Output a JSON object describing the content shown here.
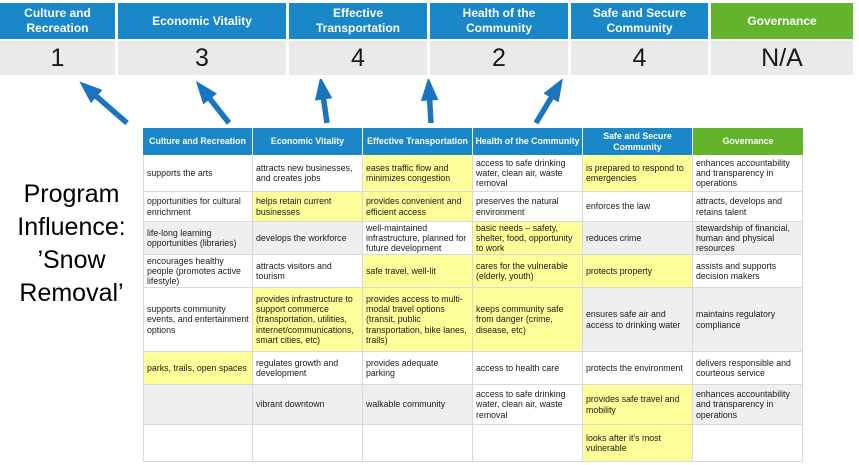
{
  "title": {
    "full": "Program Influence: ’Snow Removal’",
    "lines": [
      "Program",
      "Influence:",
      "’Snow",
      "Removal’"
    ]
  },
  "colors": {
    "blue": "#1987C8",
    "green": "#64B32D",
    "arrow": "#1B74BE",
    "highlight": "#FDFD99",
    "band": "#EFEFEF",
    "score_bg": "#EAEAEA"
  },
  "banner": {
    "columns": [
      {
        "label": "Culture and Recreation",
        "score": "1",
        "color": "#1987C8"
      },
      {
        "label": "Economic Vitality",
        "score": "3",
        "color": "#1987C8"
      },
      {
        "label": "Effective Transportation",
        "score": "4",
        "color": "#1987C8"
      },
      {
        "label": "Health of the Community",
        "score": "2",
        "color": "#1987C8"
      },
      {
        "label": "Safe and Secure Community",
        "score": "4",
        "color": "#1987C8"
      },
      {
        "label": "Governance",
        "score": "N/A",
        "color": "#64B32D"
      }
    ]
  },
  "matrix": {
    "headers": [
      {
        "label": "Culture and Recreation",
        "color": "blue"
      },
      {
        "label": "Economic Vitality",
        "color": "blue"
      },
      {
        "label": "Effective Transportation",
        "color": "blue"
      },
      {
        "label": "Health of the Community",
        "color": "blue"
      },
      {
        "label": "Safe and Secure Community",
        "color": "blue"
      },
      {
        "label": "Governance",
        "color": "green"
      }
    ],
    "rows": [
      [
        {
          "text": "supports the arts"
        },
        {
          "text": "attracts new businesses, and creates jobs"
        },
        {
          "text": "eases traffic flow and minimizes congestion",
          "highlight": true
        },
        {
          "text": "access to safe drinking water, clean air, waste removal"
        },
        {
          "text": "is prepared to respond to emergencies",
          "highlight": true
        },
        {
          "text": "enhances accountability and transparency in operations"
        }
      ],
      [
        {
          "text": "opportunities for cultural enrichment"
        },
        {
          "text": "helps retain current businesses",
          "highlight": true
        },
        {
          "text": "provides convenient and efficient access",
          "highlight": true
        },
        {
          "text": "preserves the natural environment"
        },
        {
          "text": "enforces the law"
        },
        {
          "text": "attracts, develops and retains talent"
        }
      ],
      [
        {
          "text": "life-long learning opportunities (libraries)"
        },
        {
          "text": "develops the workforce"
        },
        {
          "text": "well-maintained infrastructure, planned for future development"
        },
        {
          "text": "basic needs – safety, shelter, food, opportunity to work",
          "highlight": true
        },
        {
          "text": "reduces crime"
        },
        {
          "text": "stewardship of financial, human and physical resources"
        }
      ],
      [
        {
          "text": "encourages healthy people (promotes active lifestyle)"
        },
        {
          "text": "attracts visitors and tourism"
        },
        {
          "text": "safe travel, well-lit",
          "highlight": true
        },
        {
          "text": "cares for the vulnerable (elderly, youth)",
          "highlight": true
        },
        {
          "text": "protects property",
          "highlight": true
        },
        {
          "text": "assists and supports decision makers"
        }
      ],
      [
        {
          "text": "supports community events, and entertainment options"
        },
        {
          "text": "provides infrastructure to support commerce (transportation, utilities, internet/communications, smart cities, etc)",
          "highlight": true
        },
        {
          "text": "provides access to multi-modal travel options (transit, public transportation, bike lanes, trails)",
          "highlight": true
        },
        {
          "text": "keeps community safe from danger (crime, disease, etc)",
          "highlight": true
        },
        {
          "text": "ensures safe air and access to drinking water"
        },
        {
          "text": "maintains regulatory compliance"
        }
      ],
      [
        {
          "text": "parks, trails, open spaces",
          "highlight": true
        },
        {
          "text": "regulates growth and development"
        },
        {
          "text": "provides adequate parking"
        },
        {
          "text": "access to health care"
        },
        {
          "text": "protects the environment"
        },
        {
          "text": "delivers responsible and courteous service"
        }
      ],
      [
        {
          "text": ""
        },
        {
          "text": "vibrant downtown"
        },
        {
          "text": "walkable community"
        },
        {
          "text": "access to safe drinking water, clean air, waste removal"
        },
        {
          "text": "provides safe travel and mobility",
          "highlight": true
        },
        {
          "text": "enhances accountability and transparency in operations"
        }
      ],
      [
        {
          "text": ""
        },
        {
          "text": ""
        },
        {
          "text": ""
        },
        {
          "text": ""
        },
        {
          "text": "looks after it's most vulnerable",
          "highlight": true
        },
        {
          "text": ""
        }
      ]
    ]
  }
}
